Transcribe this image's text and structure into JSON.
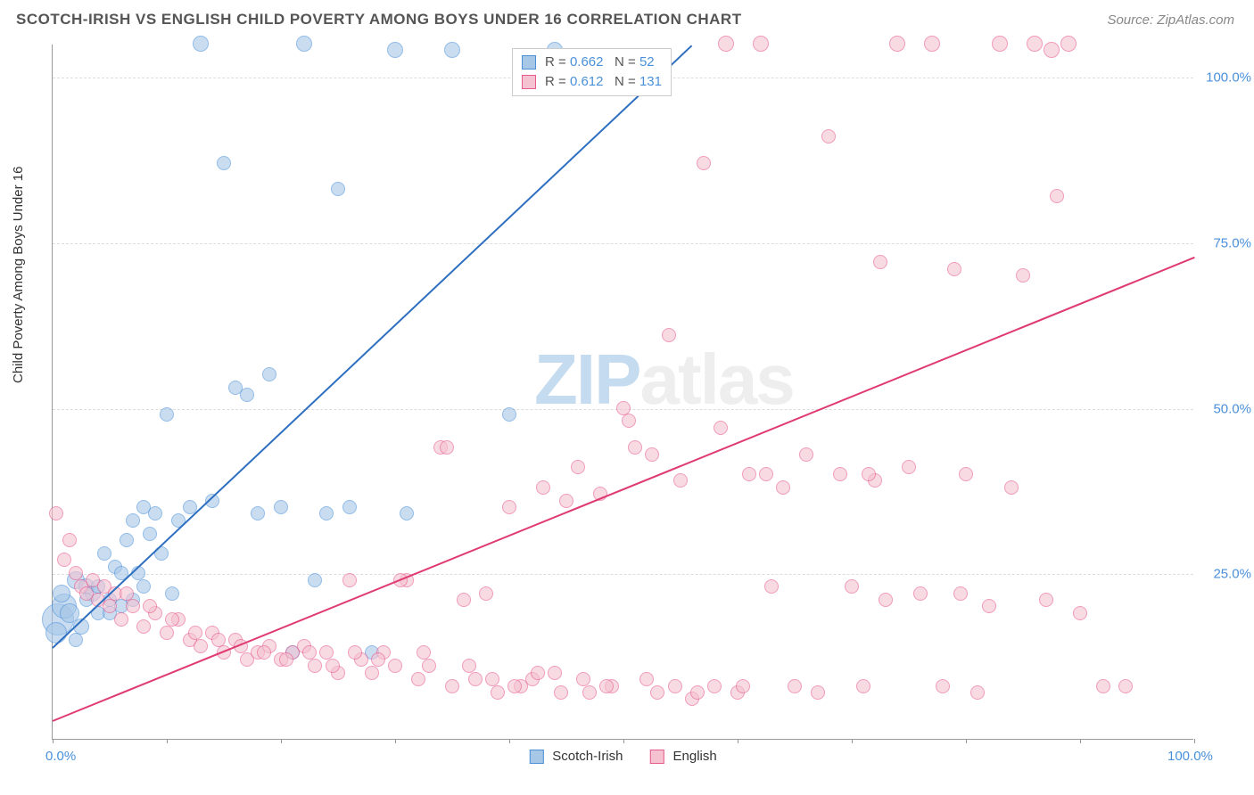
{
  "title": "SCOTCH-IRISH VS ENGLISH CHILD POVERTY AMONG BOYS UNDER 16 CORRELATION CHART",
  "source": "Source: ZipAtlas.com",
  "y_axis_label": "Child Poverty Among Boys Under 16",
  "watermark": {
    "part1": "ZIP",
    "part2": "atlas"
  },
  "chart": {
    "type": "scatter",
    "background_color": "#ffffff",
    "grid_color": "#dddddd",
    "axis_color": "#999999",
    "xlim": [
      0,
      100
    ],
    "ylim": [
      0,
      105
    ],
    "x_ticks": [
      0,
      10,
      20,
      30,
      40,
      50,
      60,
      70,
      80,
      90,
      100
    ],
    "x_tick_labels": {
      "0": "0.0%",
      "100": "100.0%"
    },
    "y_gridlines": [
      25,
      50,
      75,
      100
    ],
    "y_tick_labels": {
      "25": "25.0%",
      "50": "50.0%",
      "75": "75.0%",
      "100": "100.0%"
    },
    "tick_label_color": "#4a90d9",
    "marker_radius": 8,
    "large_marker_radius": 15,
    "marker_opacity": 0.35,
    "trend_line_width": 2
  },
  "series": [
    {
      "name": "Scotch-Irish",
      "color_fill": "#a7c7e7",
      "color_stroke": "#4a90d9",
      "R_label": "R =",
      "R_value": "0.662",
      "N_label": "N =",
      "N_value": "52",
      "trend": {
        "x1": 0,
        "y1": 14,
        "x2": 56,
        "y2": 105,
        "color": "#2e6fc0"
      },
      "points": [
        [
          0.5,
          18,
          18
        ],
        [
          1,
          20,
          14
        ],
        [
          1.5,
          19,
          11
        ],
        [
          2,
          24,
          10
        ],
        [
          2.5,
          17,
          9
        ],
        [
          3,
          23,
          9
        ],
        [
          3.5,
          22,
          9
        ],
        [
          4,
          19,
          8
        ],
        [
          4.5,
          28,
          8
        ],
        [
          5,
          21,
          8
        ],
        [
          5.5,
          26,
          8
        ],
        [
          6,
          20,
          8
        ],
        [
          6.5,
          30,
          8
        ],
        [
          7,
          33,
          8
        ],
        [
          7.5,
          25,
          8
        ],
        [
          8,
          35,
          8
        ],
        [
          8.5,
          31,
          8
        ],
        [
          9,
          34,
          8
        ],
        [
          9.5,
          28,
          8
        ],
        [
          10,
          49,
          8
        ],
        [
          10.5,
          22,
          8
        ],
        [
          11,
          33,
          8
        ],
        [
          12,
          35,
          8
        ],
        [
          13,
          105,
          9
        ],
        [
          14,
          36,
          8
        ],
        [
          15,
          87,
          8
        ],
        [
          16,
          53,
          8
        ],
        [
          17,
          52,
          8
        ],
        [
          18,
          34,
          8
        ],
        [
          19,
          55,
          8
        ],
        [
          20,
          35,
          8
        ],
        [
          21,
          13,
          8
        ],
        [
          22,
          105,
          9
        ],
        [
          23,
          24,
          8
        ],
        [
          24,
          34,
          8
        ],
        [
          25,
          83,
          8
        ],
        [
          26,
          35,
          8
        ],
        [
          28,
          13,
          8
        ],
        [
          30,
          104,
          9
        ],
        [
          31,
          34,
          8
        ],
        [
          35,
          104,
          9
        ],
        [
          40,
          49,
          8
        ],
        [
          44,
          104,
          9
        ],
        [
          2,
          15,
          8
        ],
        [
          3,
          21,
          8
        ],
        [
          4,
          23,
          8
        ],
        [
          5,
          19,
          8
        ],
        [
          6,
          25,
          8
        ],
        [
          7,
          21,
          8
        ],
        [
          8,
          23,
          8
        ],
        [
          0.3,
          16,
          12
        ],
        [
          0.8,
          22,
          10
        ]
      ]
    },
    {
      "name": "English",
      "color_fill": "#f5c2d1",
      "color_stroke": "#e75a8d",
      "R_label": "R =",
      "R_value": "0.612",
      "N_label": "N =",
      "N_value": "131",
      "trend": {
        "x1": 0,
        "y1": 3,
        "x2": 100,
        "y2": 73,
        "color": "#e03a72"
      },
      "points": [
        [
          0.3,
          34,
          8
        ],
        [
          1,
          27,
          8
        ],
        [
          1.5,
          30,
          8
        ],
        [
          2,
          25,
          8
        ],
        [
          2.5,
          23,
          8
        ],
        [
          3,
          22,
          8
        ],
        [
          3.5,
          24,
          8
        ],
        [
          4,
          21,
          8
        ],
        [
          4.5,
          23,
          8
        ],
        [
          5,
          20,
          8
        ],
        [
          5.5,
          22,
          8
        ],
        [
          6,
          18,
          8
        ],
        [
          7,
          20,
          8
        ],
        [
          8,
          17,
          8
        ],
        [
          9,
          19,
          8
        ],
        [
          10,
          16,
          8
        ],
        [
          11,
          18,
          8
        ],
        [
          12,
          15,
          8
        ],
        [
          13,
          14,
          8
        ],
        [
          14,
          16,
          8
        ],
        [
          15,
          13,
          8
        ],
        [
          16,
          15,
          8
        ],
        [
          17,
          12,
          8
        ],
        [
          18,
          13,
          8
        ],
        [
          19,
          14,
          8
        ],
        [
          20,
          12,
          8
        ],
        [
          21,
          13,
          8
        ],
        [
          22,
          14,
          8
        ],
        [
          23,
          11,
          8
        ],
        [
          24,
          13,
          8
        ],
        [
          25,
          10,
          8
        ],
        [
          26,
          24,
          8
        ],
        [
          27,
          12,
          8
        ],
        [
          28,
          10,
          8
        ],
        [
          29,
          13,
          8
        ],
        [
          30,
          11,
          8
        ],
        [
          31,
          24,
          8
        ],
        [
          32,
          9,
          8
        ],
        [
          33,
          11,
          8
        ],
        [
          34,
          44,
          8
        ],
        [
          35,
          8,
          8
        ],
        [
          36,
          21,
          8
        ],
        [
          37,
          9,
          8
        ],
        [
          38,
          22,
          8
        ],
        [
          39,
          7,
          8
        ],
        [
          40,
          35,
          8
        ],
        [
          41,
          8,
          8
        ],
        [
          42,
          9,
          8
        ],
        [
          43,
          38,
          8
        ],
        [
          44,
          10,
          8
        ],
        [
          45,
          36,
          8
        ],
        [
          46,
          41,
          8
        ],
        [
          47,
          7,
          8
        ],
        [
          48,
          37,
          8
        ],
        [
          49,
          8,
          8
        ],
        [
          50,
          50,
          8
        ],
        [
          51,
          44,
          8
        ],
        [
          52,
          9,
          8
        ],
        [
          53,
          7,
          8
        ],
        [
          54,
          61,
          8
        ],
        [
          55,
          39,
          8
        ],
        [
          56,
          6,
          8
        ],
        [
          57,
          87,
          8
        ],
        [
          58,
          8,
          8
        ],
        [
          59,
          105,
          9
        ],
        [
          60,
          7,
          8
        ],
        [
          61,
          40,
          8
        ],
        [
          62,
          105,
          9
        ],
        [
          63,
          23,
          8
        ],
        [
          64,
          38,
          8
        ],
        [
          65,
          8,
          8
        ],
        [
          66,
          43,
          8
        ],
        [
          67,
          7,
          8
        ],
        [
          68,
          91,
          8
        ],
        [
          69,
          40,
          8
        ],
        [
          70,
          23,
          8
        ],
        [
          71,
          8,
          8
        ],
        [
          72,
          39,
          8
        ],
        [
          73,
          21,
          8
        ],
        [
          74,
          105,
          9
        ],
        [
          75,
          41,
          8
        ],
        [
          76,
          22,
          8
        ],
        [
          77,
          105,
          9
        ],
        [
          78,
          8,
          8
        ],
        [
          79,
          71,
          8
        ],
        [
          80,
          40,
          8
        ],
        [
          81,
          7,
          8
        ],
        [
          82,
          20,
          8
        ],
        [
          83,
          105,
          9
        ],
        [
          84,
          38,
          8
        ],
        [
          85,
          70,
          8
        ],
        [
          86,
          105,
          9
        ],
        [
          87,
          21,
          8
        ],
        [
          88,
          82,
          8
        ],
        [
          89,
          105,
          9
        ],
        [
          90,
          19,
          8
        ],
        [
          92,
          8,
          8
        ],
        [
          94,
          8,
          8
        ],
        [
          6.5,
          22,
          8
        ],
        [
          8.5,
          20,
          8
        ],
        [
          10.5,
          18,
          8
        ],
        [
          12.5,
          16,
          8
        ],
        [
          14.5,
          15,
          8
        ],
        [
          16.5,
          14,
          8
        ],
        [
          18.5,
          13,
          8
        ],
        [
          20.5,
          12,
          8
        ],
        [
          22.5,
          13,
          8
        ],
        [
          24.5,
          11,
          8
        ],
        [
          26.5,
          13,
          8
        ],
        [
          28.5,
          12,
          8
        ],
        [
          30.5,
          24,
          8
        ],
        [
          32.5,
          13,
          8
        ],
        [
          34.5,
          44,
          8
        ],
        [
          36.5,
          11,
          8
        ],
        [
          38.5,
          9,
          8
        ],
        [
          40.5,
          8,
          8
        ],
        [
          42.5,
          10,
          8
        ],
        [
          44.5,
          7,
          8
        ],
        [
          46.5,
          9,
          8
        ],
        [
          48.5,
          8,
          8
        ],
        [
          50.5,
          48,
          8
        ],
        [
          52.5,
          43,
          8
        ],
        [
          54.5,
          8,
          8
        ],
        [
          56.5,
          7,
          8
        ],
        [
          58.5,
          47,
          8
        ],
        [
          60.5,
          8,
          8
        ],
        [
          62.5,
          40,
          8
        ],
        [
          71.5,
          40,
          8
        ],
        [
          72.5,
          72,
          8
        ],
        [
          87.5,
          104,
          9
        ],
        [
          79.5,
          22,
          8
        ]
      ]
    }
  ],
  "bottom_legend": [
    {
      "label": "Scotch-Irish",
      "fill": "#a7c7e7",
      "stroke": "#4a90d9"
    },
    {
      "label": "English",
      "fill": "#f5c2d1",
      "stroke": "#e75a8d"
    }
  ]
}
